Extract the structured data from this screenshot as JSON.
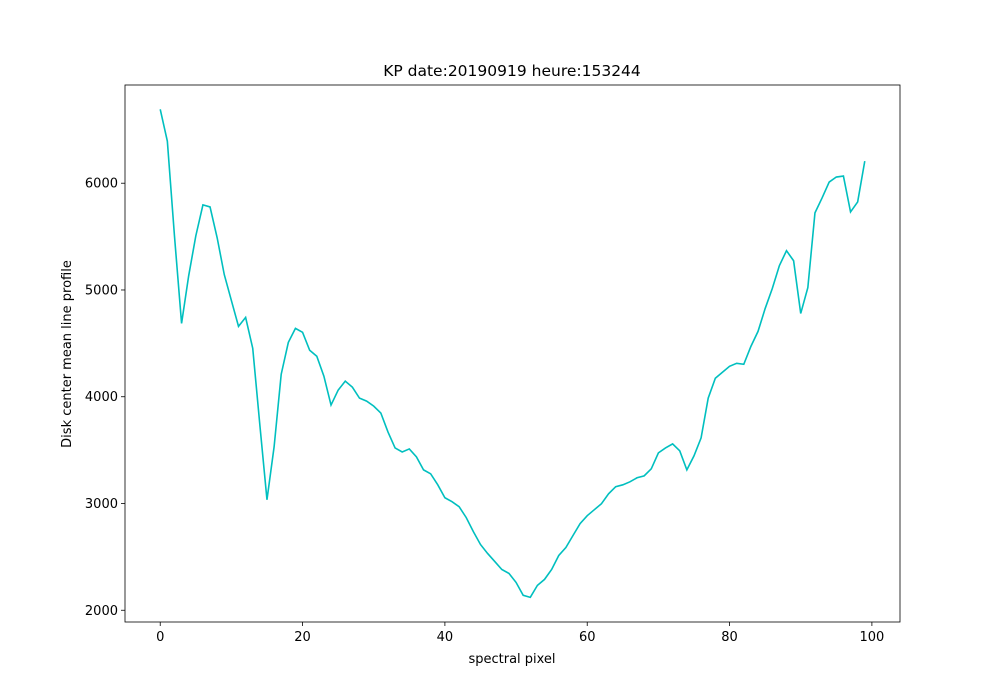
{
  "chart_data": {
    "type": "line",
    "title": "KP date:20190919 heure:153244",
    "xlabel": "spectral pixel",
    "ylabel": "Disk center mean line profile",
    "x": [
      0,
      1,
      2,
      3,
      4,
      5,
      6,
      7,
      8,
      9,
      10,
      11,
      12,
      13,
      14,
      15,
      16,
      17,
      18,
      19,
      20,
      21,
      22,
      23,
      24,
      25,
      26,
      27,
      28,
      29,
      30,
      31,
      32,
      33,
      34,
      35,
      36,
      37,
      38,
      39,
      40,
      41,
      42,
      43,
      44,
      45,
      46,
      47,
      48,
      49,
      50,
      51,
      52,
      53,
      54,
      55,
      56,
      57,
      58,
      59,
      60,
      61,
      62,
      63,
      64,
      65,
      66,
      67,
      68,
      69,
      70,
      71,
      72,
      73,
      74,
      75,
      76,
      77,
      78,
      79,
      80,
      81,
      82,
      83,
      84,
      85,
      86,
      87,
      88,
      89,
      90,
      91,
      92,
      93,
      94,
      95,
      96,
      97,
      98,
      99
    ],
    "series": [
      {
        "name": "profile",
        "color": "#00bfbf",
        "values": [
          6692,
          6394,
          5507,
          4687,
          5134,
          5507,
          5797,
          5778,
          5489,
          5144,
          4901,
          4659,
          4743,
          4453,
          3735,
          3035,
          3530,
          4211,
          4509,
          4640,
          4603,
          4435,
          4379,
          4192,
          3922,
          4062,
          4146,
          4090,
          3987,
          3959,
          3912,
          3847,
          3670,
          3520,
          3483,
          3511,
          3437,
          3315,
          3278,
          3175,
          3054,
          3017,
          2970,
          2868,
          2737,
          2616,
          2532,
          2457,
          2382,
          2345,
          2261,
          2140,
          2121,
          2233,
          2289,
          2382,
          2513,
          2588,
          2700,
          2812,
          2886,
          2942,
          2998,
          3091,
          3157,
          3175,
          3203,
          3241,
          3259,
          3325,
          3474,
          3520,
          3558,
          3493,
          3315,
          3446,
          3614,
          3987,
          4173,
          4229,
          4285,
          4313,
          4304,
          4472,
          4612,
          4826,
          5013,
          5228,
          5368,
          5274,
          4780,
          5022,
          5722,
          5862,
          6011,
          6058,
          6067,
          5731,
          5825,
          6207
        ]
      }
    ],
    "xlim": [
      -4.95,
      103.95
    ],
    "xticks": [
      0,
      20,
      40,
      60,
      80,
      100
    ],
    "ylim": [
      1890,
      6920
    ],
    "yticks": [
      2000,
      3000,
      4000,
      5000,
      6000
    ]
  }
}
